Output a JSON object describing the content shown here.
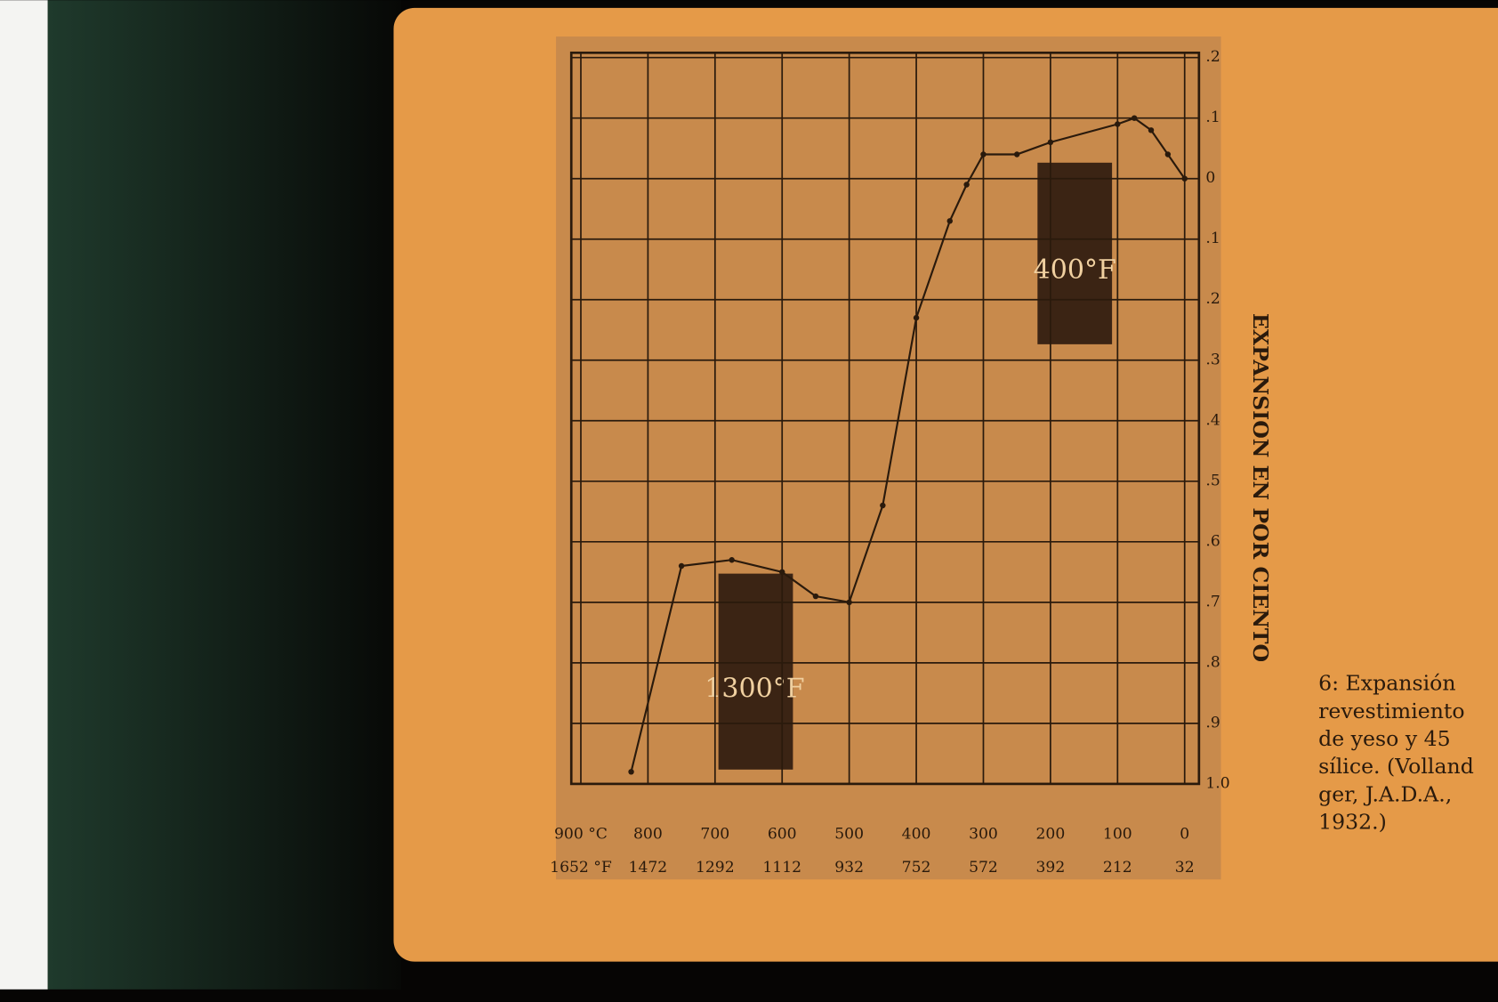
{
  "chart_data": {
    "type": "line",
    "y_label": "EXPANSION EN POR CIENTO",
    "x": [
      0,
      25,
      50,
      75,
      100,
      200,
      250,
      300,
      325,
      350,
      400,
      450,
      500,
      550,
      600,
      675,
      750,
      825
    ],
    "series": [
      {
        "name": "Expansión",
        "color": "#2a1a0c",
        "values": [
          0,
          -0.04,
          -0.08,
          -0.1,
          -0.09,
          -0.06,
          -0.04,
          -0.04,
          0.01,
          0.07,
          0.23,
          0.54,
          0.7,
          0.69,
          0.65,
          0.63,
          0.64,
          0.98
        ]
      }
    ],
    "xlim": [
      0,
      900
    ],
    "xticks": [
      0,
      100,
      200,
      300,
      400,
      500,
      600,
      700,
      800,
      {
        "value": 900,
        "label": "900 °C"
      }
    ],
    "x2ticks": [
      {
        "value": 0,
        "label": "32"
      },
      {
        "value": 100,
        "label": "212"
      },
      {
        "value": 200,
        "label": "392"
      },
      {
        "value": 300,
        "label": "572"
      },
      {
        "value": 400,
        "label": "752"
      },
      {
        "value": 500,
        "label": "932"
      },
      {
        "value": 600,
        "label": "1112"
      },
      {
        "value": 700,
        "label": "1292"
      },
      {
        "value": 800,
        "label": "1472"
      },
      {
        "value": 900,
        "label": "1652 °F"
      }
    ],
    "ylim": [
      1.0,
      -0.2
    ],
    "yticks": [
      {
        "value": -0.2,
        "label": ".2"
      },
      {
        "value": -0.1,
        "label": ".1"
      },
      0,
      {
        "value": 0.1,
        "label": ".1"
      },
      {
        "value": 0.2,
        "label": ".2"
      },
      {
        "value": 0.3,
        "label": ".3"
      },
      {
        "value": 0.4,
        "label": ".4"
      },
      {
        "value": 0.5,
        "label": ".5"
      },
      {
        "value": 0.6,
        "label": ".6"
      },
      {
        "value": 0.7,
        "label": ".7"
      },
      {
        "value": 0.8,
        "label": ".8"
      },
      {
        "value": 0.9,
        "label": ".9"
      },
      {
        "value": 1.0,
        "label": "1.0"
      }
    ],
    "grid": true
  },
  "photo_labels": [
    "400°F",
    "1300°F"
  ],
  "caption": [
    "6: Expansión",
    "revestimiento",
    "de yeso y 45",
    "sílice. (Volland",
    "ger, J.A.D.A.,",
    "1932.)"
  ]
}
